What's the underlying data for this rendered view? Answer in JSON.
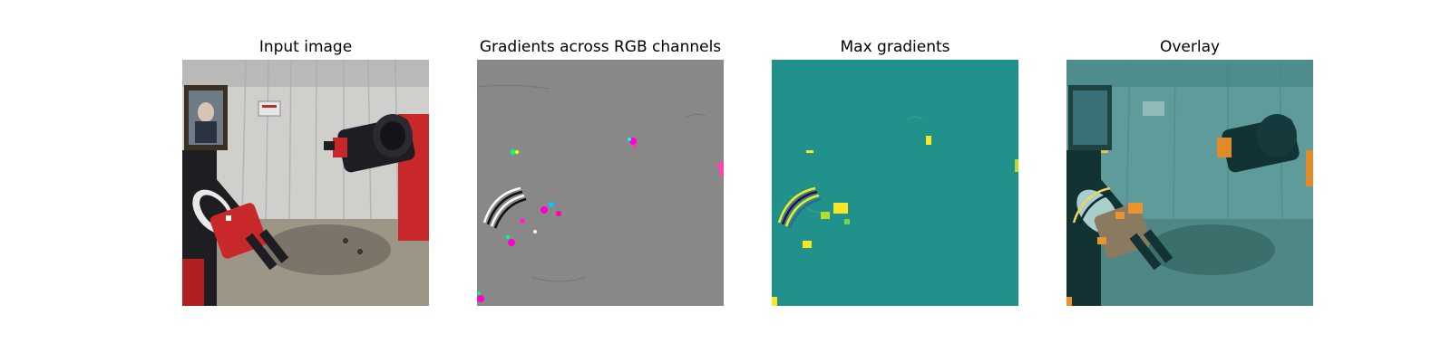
{
  "figure": {
    "panels": [
      {
        "id": "input",
        "title": "Input image",
        "content": "robot-arms-scene-photo"
      },
      {
        "id": "gradients_rgb",
        "title": "Gradients across RGB channels",
        "content": "rgb-gradient-map"
      },
      {
        "id": "max_gradients",
        "title": "Max gradients",
        "content": "max-gradient-heatmap"
      },
      {
        "id": "overlay",
        "title": "Overlay",
        "content": "heatmap-overlay-on-photo"
      }
    ]
  },
  "colors": {
    "background": "#ffffff",
    "gradient_gray": "#888888",
    "heatmap_base": "#21918c",
    "heatmap_high": "#fde725",
    "robot_red": "#c8282a",
    "robot_black": "#1e1e22"
  }
}
